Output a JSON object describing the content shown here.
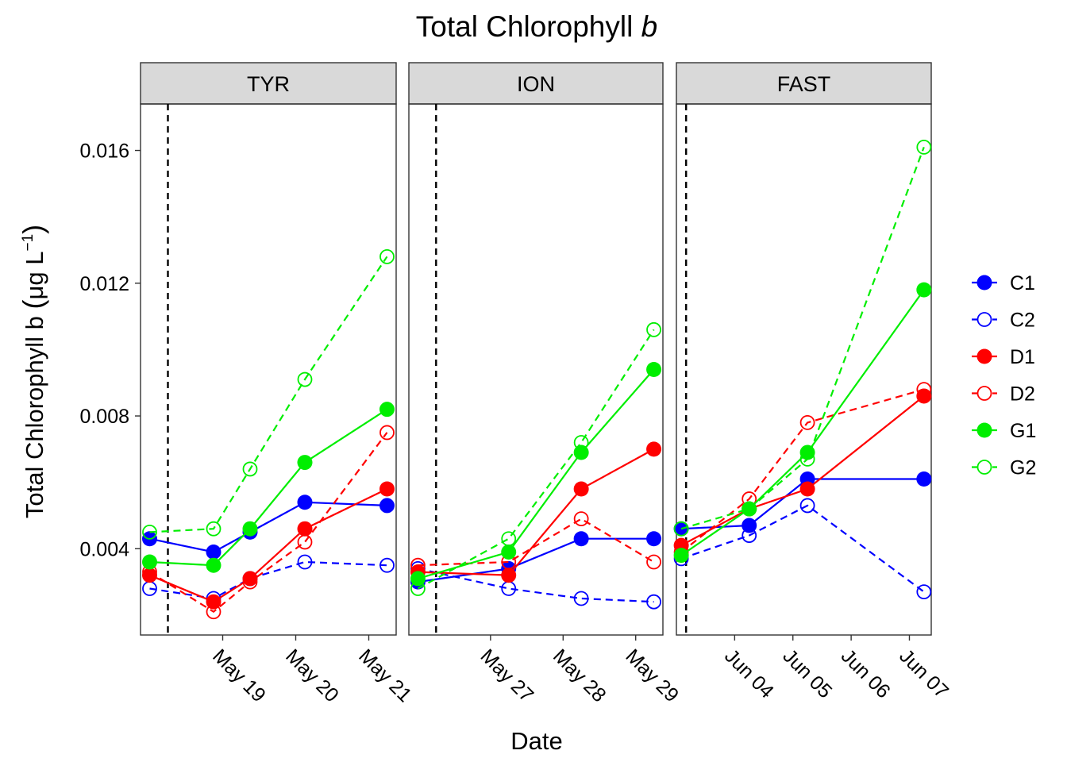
{
  "chart_data": {
    "type": "line",
    "title": "Total Chlorophyll",
    "title_italic": "b",
    "xlabel": "Date",
    "ylabel": "Total Chlorophyll b",
    "ylabel_unit_open": "(",
    "ylabel_unit_mu": "μ",
    "ylabel_unit_text": "g L",
    "ylabel_unit_sup": "−1",
    "ylabel_unit_close": ")",
    "ylim": [
      0.0014,
      0.0174
    ],
    "yticks": [
      0.004,
      0.008,
      0.012,
      0.016
    ],
    "ytick_labels": [
      "0.004",
      "0.008",
      "0.012",
      "0.016"
    ],
    "grid": false,
    "legend_position": "right",
    "colors": {
      "blue": "#0000ff",
      "red": "#ff0000",
      "green": "#00ee00",
      "strip_bg": "#d9d9d9",
      "vline": "#000000"
    },
    "series_styles": [
      {
        "name": "C1",
        "color": "#0000ff",
        "filled": true,
        "dashed": false
      },
      {
        "name": "C2",
        "color": "#0000ff",
        "filled": false,
        "dashed": true
      },
      {
        "name": "D1",
        "color": "#ff0000",
        "filled": true,
        "dashed": false
      },
      {
        "name": "D2",
        "color": "#ff0000",
        "filled": false,
        "dashed": true
      },
      {
        "name": "G1",
        "color": "#00ee00",
        "filled": true,
        "dashed": false
      },
      {
        "name": "G2",
        "color": "#00ee00",
        "filled": false,
        "dashed": true
      }
    ],
    "panels": [
      {
        "name": "TYR",
        "xlim": [
          "2016-05-17T21:00",
          "2016-05-21T09:00"
        ],
        "xticks": [
          "2016-05-19",
          "2016-05-20",
          "2016-05-21"
        ],
        "xtick_labels": [
          "May 19",
          "May 20",
          "May 21"
        ],
        "vline": "2016-05-18T06:00",
        "series": [
          {
            "name": "C1",
            "x": [
              "2016-05-18T00:00",
              "2016-05-18T21:00",
              "2016-05-19T09:00",
              "2016-05-20T03:00",
              "2016-05-21T06:00"
            ],
            "values": [
              0.0043,
              0.0039,
              0.0045,
              0.0054,
              0.0053
            ]
          },
          {
            "name": "C2",
            "x": [
              "2016-05-18T00:00",
              "2016-05-18T21:00",
              "2016-05-19T09:00",
              "2016-05-20T03:00",
              "2016-05-21T06:00"
            ],
            "values": [
              0.0028,
              0.0025,
              0.0031,
              0.0036,
              0.0035
            ]
          },
          {
            "name": "D1",
            "x": [
              "2016-05-18T00:00",
              "2016-05-18T21:00",
              "2016-05-19T09:00",
              "2016-05-20T03:00",
              "2016-05-21T06:00"
            ],
            "values": [
              0.0032,
              0.0024,
              0.0031,
              0.0046,
              0.0058
            ]
          },
          {
            "name": "D2",
            "x": [
              "2016-05-18T00:00",
              "2016-05-18T21:00",
              "2016-05-19T09:00",
              "2016-05-20T03:00",
              "2016-05-21T06:00"
            ],
            "values": [
              0.0033,
              0.0021,
              0.003,
              0.0042,
              0.0075
            ]
          },
          {
            "name": "G1",
            "x": [
              "2016-05-18T00:00",
              "2016-05-18T21:00",
              "2016-05-19T09:00",
              "2016-05-20T03:00",
              "2016-05-21T06:00"
            ],
            "values": [
              0.0036,
              0.0035,
              0.0046,
              0.0066,
              0.0082
            ]
          },
          {
            "name": "G2",
            "x": [
              "2016-05-18T00:00",
              "2016-05-18T21:00",
              "2016-05-19T09:00",
              "2016-05-20T03:00",
              "2016-05-21T06:00"
            ],
            "values": [
              0.0045,
              0.0046,
              0.0064,
              0.0091,
              0.0128
            ]
          }
        ]
      },
      {
        "name": "ION",
        "xlim": [
          "2016-05-25T21:00",
          "2016-05-29T09:00"
        ],
        "xticks": [
          "2016-05-27",
          "2016-05-28",
          "2016-05-29"
        ],
        "xtick_labels": [
          "May 27",
          "May 28",
          "May 29"
        ],
        "vline": "2016-05-26T06:00",
        "series": [
          {
            "name": "C1",
            "x": [
              "2016-05-26T00:00",
              "2016-05-27T06:00",
              "2016-05-28T06:00",
              "2016-05-29T06:00"
            ],
            "values": [
              0.003,
              0.0034,
              0.0043,
              0.0043
            ]
          },
          {
            "name": "C2",
            "x": [
              "2016-05-26T00:00",
              "2016-05-27T06:00",
              "2016-05-28T06:00",
              "2016-05-29T06:00"
            ],
            "values": [
              0.0034,
              0.0028,
              0.0025,
              0.0024
            ]
          },
          {
            "name": "D1",
            "x": [
              "2016-05-26T00:00",
              "2016-05-27T06:00",
              "2016-05-28T06:00",
              "2016-05-29T06:00"
            ],
            "values": [
              0.0033,
              0.0032,
              0.0058,
              0.007
            ]
          },
          {
            "name": "D2",
            "x": [
              "2016-05-26T00:00",
              "2016-05-27T06:00",
              "2016-05-28T06:00",
              "2016-05-29T06:00"
            ],
            "values": [
              0.0035,
              0.0036,
              0.0049,
              0.0036
            ]
          },
          {
            "name": "G1",
            "x": [
              "2016-05-26T00:00",
              "2016-05-27T06:00",
              "2016-05-28T06:00",
              "2016-05-29T06:00"
            ],
            "values": [
              0.0031,
              0.0039,
              0.0069,
              0.0094
            ]
          },
          {
            "name": "G2",
            "x": [
              "2016-05-26T00:00",
              "2016-05-27T06:00",
              "2016-05-28T06:00",
              "2016-05-29T06:00"
            ],
            "values": [
              0.0028,
              0.0043,
              0.0072,
              0.0106
            ]
          }
        ]
      },
      {
        "name": "FAST",
        "xlim": [
          "2016-06-03T00:00",
          "2016-06-07T09:00"
        ],
        "xticks": [
          "2016-06-04",
          "2016-06-05",
          "2016-06-06",
          "2016-06-07"
        ],
        "xtick_labels": [
          "Jun 04",
          "Jun 05",
          "Jun 06",
          "Jun 07"
        ],
        "vline": "2016-06-03T04:00",
        "series": [
          {
            "name": "C1",
            "x": [
              "2016-06-03T02:00",
              "2016-06-04T06:00",
              "2016-06-05T06:00",
              "2016-06-07T06:00"
            ],
            "values": [
              0.0046,
              0.0047,
              0.0061,
              0.0061
            ]
          },
          {
            "name": "C2",
            "x": [
              "2016-06-03T02:00",
              "2016-06-04T06:00",
              "2016-06-05T06:00",
              "2016-06-07T06:00"
            ],
            "values": [
              0.0037,
              0.0044,
              0.0053,
              0.0027
            ]
          },
          {
            "name": "D1",
            "x": [
              "2016-06-03T02:00",
              "2016-06-04T06:00",
              "2016-06-05T06:00",
              "2016-06-07T06:00"
            ],
            "values": [
              0.0041,
              0.0052,
              0.0058,
              0.0086
            ]
          },
          {
            "name": "D2",
            "x": [
              "2016-06-03T02:00",
              "2016-06-04T06:00",
              "2016-06-05T06:00",
              "2016-06-07T06:00"
            ],
            "values": [
              0.0039,
              0.0055,
              0.0078,
              0.0088
            ]
          },
          {
            "name": "G1",
            "x": [
              "2016-06-03T02:00",
              "2016-06-04T06:00",
              "2016-06-05T06:00",
              "2016-06-07T06:00"
            ],
            "values": [
              0.0038,
              0.0052,
              0.0069,
              0.0118
            ]
          },
          {
            "name": "G2",
            "x": [
              "2016-06-03T02:00",
              "2016-06-04T06:00",
              "2016-06-05T06:00",
              "2016-06-07T06:00"
            ],
            "values": [
              0.0046,
              0.0052,
              0.0067,
              0.0161
            ]
          }
        ]
      }
    ]
  }
}
